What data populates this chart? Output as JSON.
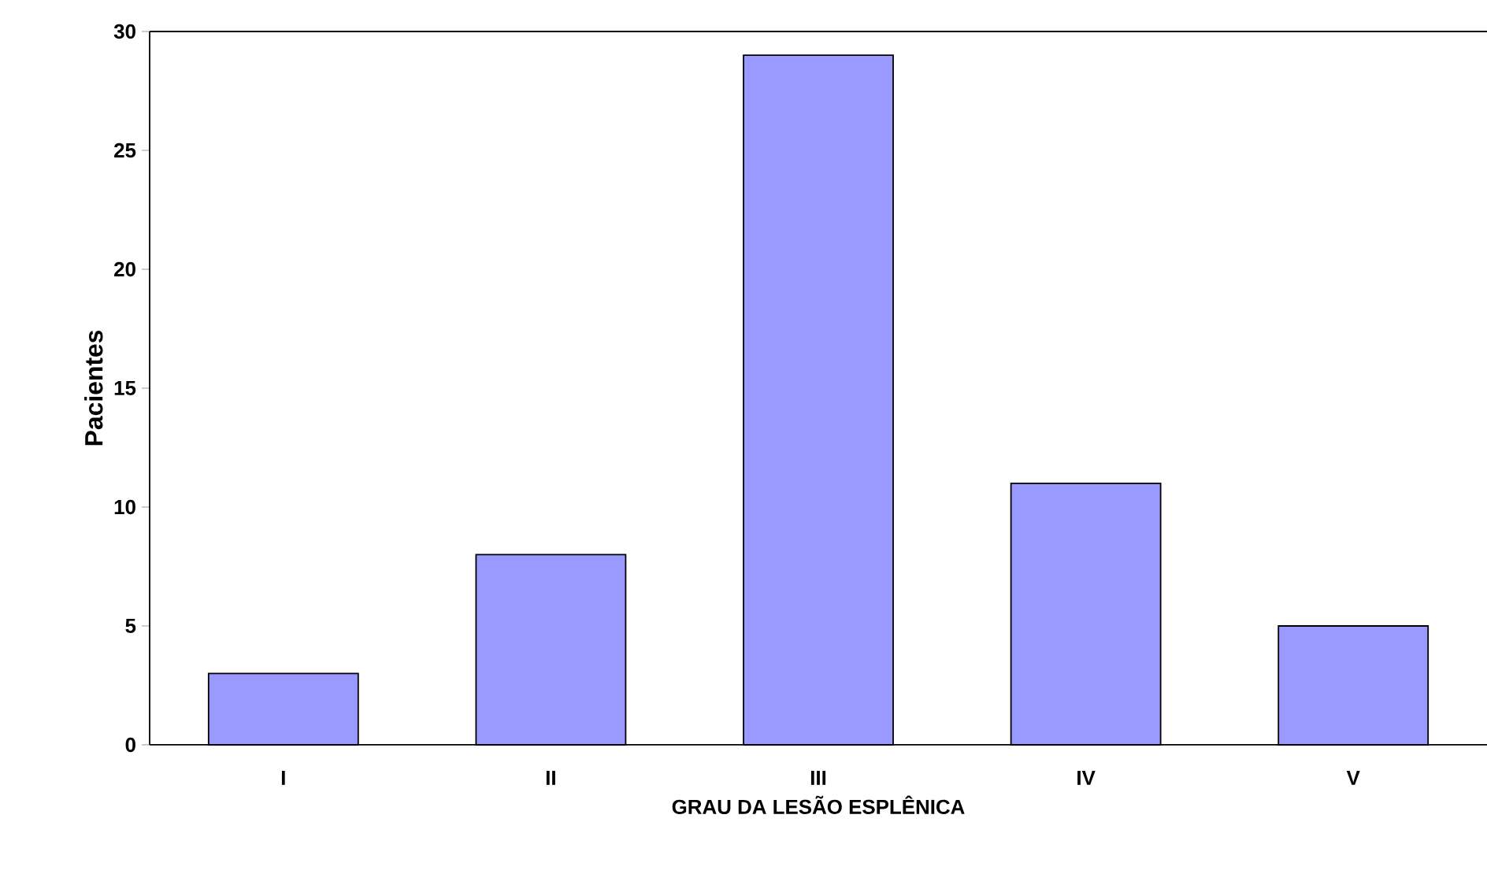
{
  "chart_data": {
    "type": "bar",
    "xlabel": "GRAU DA LESÃO ESPLÊNICA",
    "ylabel": "Pacientes",
    "categories": [
      "I",
      "II",
      "III",
      "IV",
      "V"
    ],
    "values": [
      3,
      8,
      29,
      11,
      5
    ],
    "color": "#9999ff",
    "ylim": [
      0,
      30
    ],
    "yticks": [
      0,
      5,
      10,
      15,
      20,
      25,
      30
    ],
    "grid": false
  }
}
